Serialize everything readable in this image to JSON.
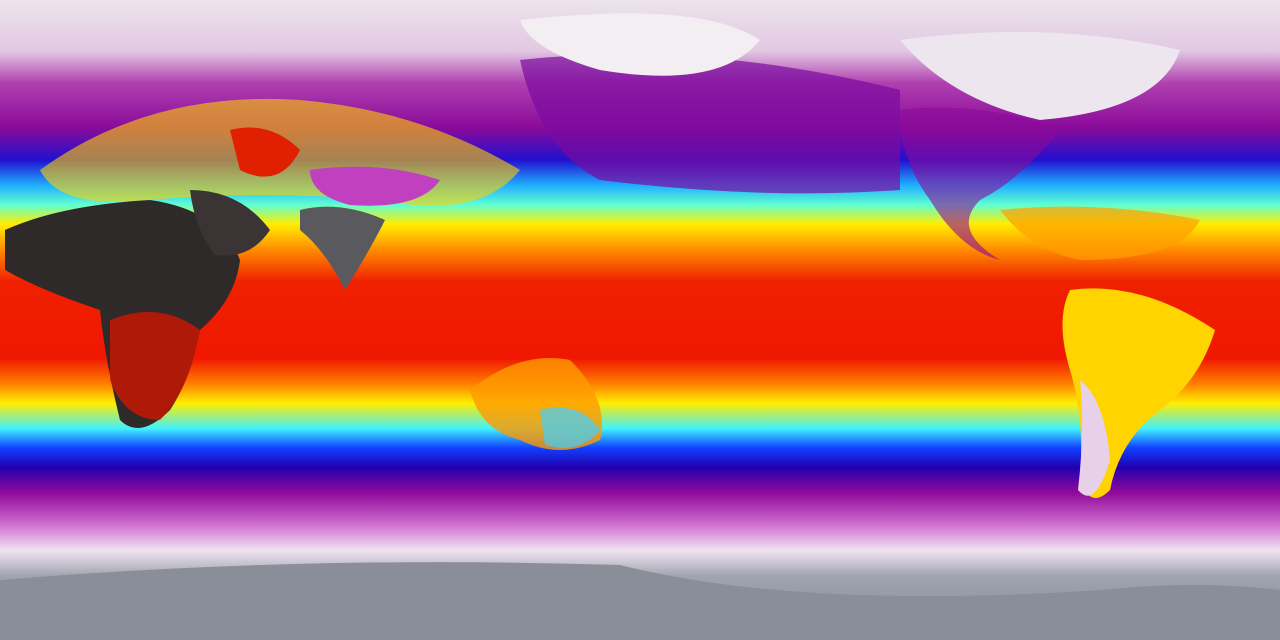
{
  "map": {
    "kind": "global temperature field",
    "colors": {
      "polar_north": "#e8dce8",
      "cold_purple": "#9a0a9a",
      "cold_blue": "#1010e0",
      "cool_cyan": "#30e0ff",
      "mild_yellow": "#ffee00",
      "warm_orange": "#ff7a00",
      "hot_red": "#f01800",
      "extreme_dark": "#3a3a3a",
      "antarctica_gray": "#8a909c"
    }
  }
}
